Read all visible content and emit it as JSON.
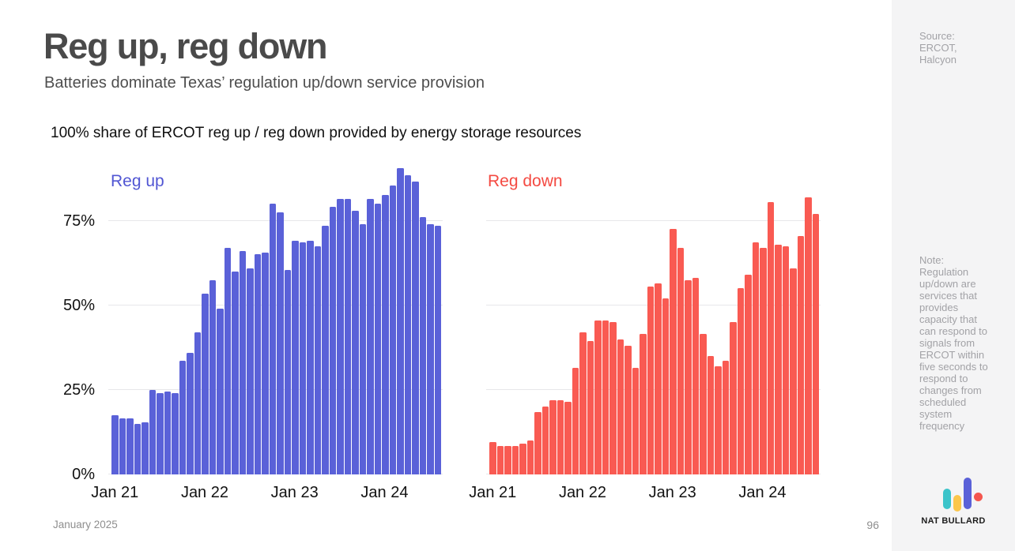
{
  "header": {
    "title": "Reg up, reg down",
    "subtitle": "Batteries dominate Texas’ regulation up/down service provision"
  },
  "chart_heading": "100% share of ERCOT reg up / reg down provided by energy storage resources",
  "footer": {
    "date": "January 2025",
    "page": "96"
  },
  "sidebar": {
    "source": "Source: ERCOT, Halcyon",
    "note": "Note: Regulation up/down are services that provides capacity that can respond to signals from ERCOT within five seconds to respond to changes from scheduled system frequency",
    "brand": "NAT BULLARD",
    "logo_colors": {
      "teal": "#3bc4ca",
      "yellow": "#fbc64b",
      "indigo": "#5a61d8",
      "red": "#f4564e"
    }
  },
  "chart_data": [
    {
      "type": "bar",
      "title": "Reg up",
      "color": "#5a61d8",
      "label_color": "#5156d3",
      "x": [
        "Jan 21",
        "Feb 21",
        "Mar 21",
        "Apr 21",
        "May 21",
        "Jun 21",
        "Jul 21",
        "Aug 21",
        "Sep 21",
        "Oct 21",
        "Nov 21",
        "Dec 21",
        "Jan 22",
        "Feb 22",
        "Mar 22",
        "Apr 22",
        "May 22",
        "Jun 22",
        "Jul 22",
        "Aug 22",
        "Sep 22",
        "Oct 22",
        "Nov 22",
        "Dec 22",
        "Jan 23",
        "Feb 23",
        "Mar 23",
        "Apr 23",
        "May 23",
        "Jun 23",
        "Jul 23",
        "Aug 23",
        "Sep 23",
        "Oct 23",
        "Nov 23",
        "Dec 23",
        "Jan 24",
        "Feb 24",
        "Mar 24",
        "Apr 24",
        "May 24",
        "Jun 24",
        "Jul 24",
        "Aug 24"
      ],
      "values": [
        17.5,
        16.5,
        16.5,
        15,
        15.5,
        25,
        24,
        24.5,
        24,
        33.5,
        36,
        42,
        53.5,
        57.5,
        49,
        67,
        60,
        66,
        61,
        65,
        65.5,
        80,
        77.5,
        60.5,
        69,
        68.5,
        69,
        67.5,
        73.5,
        79,
        81.5,
        81.5,
        78,
        74,
        81.5,
        80,
        82.5,
        85.5,
        90.5,
        88.5,
        86.5,
        76,
        74,
        73.5
      ],
      "unit": "%",
      "ylim": [
        0,
        91
      ],
      "grid": true,
      "legend_position": "top-left",
      "x_tick_labels": [
        "Jan 21",
        "Jan 22",
        "Jan 23",
        "Jan 24"
      ],
      "x_tick_indices": [
        0,
        12,
        24,
        36
      ],
      "y_ticks": [
        {
          "label": "0%",
          "value": 0
        },
        {
          "label": "25%",
          "value": 25
        },
        {
          "label": "50%",
          "value": 50
        },
        {
          "label": "75%",
          "value": 75
        }
      ]
    },
    {
      "type": "bar",
      "title": "Reg down",
      "color": "#f95a52",
      "label_color": "#f44a42",
      "x": [
        "Jan 21",
        "Feb 21",
        "Mar 21",
        "Apr 21",
        "May 21",
        "Jun 21",
        "Jul 21",
        "Aug 21",
        "Sep 21",
        "Oct 21",
        "Nov 21",
        "Dec 21",
        "Jan 22",
        "Feb 22",
        "Mar 22",
        "Apr 22",
        "May 22",
        "Jun 22",
        "Jul 22",
        "Aug 22",
        "Sep 22",
        "Oct 22",
        "Nov 22",
        "Dec 22",
        "Jan 23",
        "Feb 23",
        "Mar 23",
        "Apr 23",
        "May 23",
        "Jun 23",
        "Jul 23",
        "Aug 23",
        "Sep 23",
        "Oct 23",
        "Nov 23",
        "Dec 23",
        "Jan 24",
        "Feb 24",
        "Mar 24",
        "Apr 24",
        "May 24",
        "Jun 24",
        "Jul 24",
        "Aug 24"
      ],
      "values": [
        9.5,
        8.5,
        8.5,
        8.5,
        9,
        10,
        18.5,
        20,
        22,
        22,
        21.5,
        31.5,
        42,
        39.5,
        45.5,
        45.5,
        45,
        40,
        38,
        31.5,
        41.5,
        55.5,
        56.5,
        52,
        72.5,
        67,
        57.5,
        58,
        41.5,
        35,
        32,
        33.5,
        45,
        55,
        59,
        68.5,
        67,
        80.5,
        68,
        67.5,
        61,
        70.5,
        82,
        77
      ],
      "unit": "%",
      "ylim": [
        0,
        91
      ],
      "grid": true,
      "legend_position": "top-left",
      "x_tick_labels": [
        "Jan 21",
        "Jan 22",
        "Jan 23",
        "Jan 24"
      ],
      "x_tick_indices": [
        0,
        12,
        24,
        36
      ],
      "y_ticks": [
        {
          "label": "0%",
          "value": 0
        },
        {
          "label": "25%",
          "value": 25
        },
        {
          "label": "50%",
          "value": 50
        },
        {
          "label": "75%",
          "value": 75
        }
      ]
    }
  ]
}
